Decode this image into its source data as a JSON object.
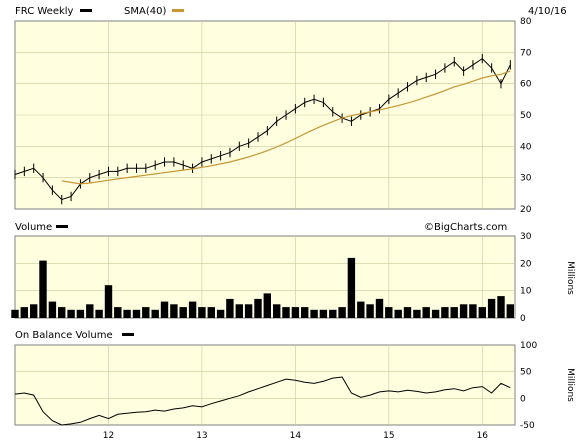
{
  "header": {
    "symbol_label": "FRC Weekly",
    "sma_label": "SMA(40)",
    "date": "4/10/16",
    "watermark": "©BigCharts.com"
  },
  "colors": {
    "panel_bg": "#ffffe0",
    "price": "#000000",
    "sma": "#c89632",
    "grid": "#c9c99a"
  },
  "chart_data": [
    {
      "type": "line",
      "name": "price",
      "title": "FRC Weekly",
      "ylim": [
        20,
        80
      ],
      "yticks": [
        20,
        30,
        40,
        50,
        60,
        70,
        80
      ],
      "x_years": [
        "12",
        "13",
        "14",
        "15",
        "16"
      ],
      "x": [
        2011.0,
        2011.1,
        2011.2,
        2011.3,
        2011.4,
        2011.5,
        2011.6,
        2011.7,
        2011.8,
        2011.9,
        2012.0,
        2012.1,
        2012.2,
        2012.3,
        2012.4,
        2012.5,
        2012.6,
        2012.7,
        2012.8,
        2012.9,
        2013.0,
        2013.1,
        2013.2,
        2013.3,
        2013.4,
        2013.5,
        2013.6,
        2013.7,
        2013.8,
        2013.9,
        2014.0,
        2014.1,
        2014.2,
        2014.3,
        2014.4,
        2014.5,
        2014.6,
        2014.7,
        2014.8,
        2014.9,
        2015.0,
        2015.1,
        2015.2,
        2015.3,
        2015.4,
        2015.5,
        2015.6,
        2015.7,
        2015.8,
        2015.9,
        2016.0,
        2016.1,
        2016.2,
        2016.3
      ],
      "series": [
        {
          "name": "FRC Weekly",
          "values": [
            31,
            32,
            33,
            30,
            26,
            23,
            24,
            28,
            30,
            31,
            32,
            32,
            33,
            33,
            33,
            34,
            35,
            35,
            34,
            33,
            35,
            36,
            37,
            38,
            40,
            41,
            43,
            45,
            48,
            50,
            52,
            54,
            55,
            54,
            51,
            49,
            48,
            50,
            51,
            52,
            55,
            57,
            59,
            61,
            62,
            63,
            65,
            67,
            64,
            66,
            68,
            65,
            60,
            66
          ]
        },
        {
          "name": "SMA(40)",
          "values": [
            null,
            null,
            null,
            null,
            null,
            29,
            28.5,
            28,
            28.3,
            28.7,
            29.2,
            29.6,
            30,
            30.4,
            30.8,
            31.2,
            31.6,
            32,
            32.4,
            32.8,
            33.3,
            33.8,
            34.4,
            35,
            35.8,
            36.6,
            37.6,
            38.6,
            39.8,
            41.1,
            42.5,
            44,
            45.4,
            46.7,
            47.9,
            49,
            49.8,
            50.4,
            51,
            51.6,
            52.3,
            53,
            53.8,
            54.7,
            55.7,
            56.7,
            57.8,
            59,
            59.8,
            60.8,
            61.8,
            62.5,
            63,
            64
          ]
        }
      ]
    },
    {
      "type": "bar",
      "name": "volume",
      "title": "Volume",
      "ylabel": "Millions",
      "ylim": [
        0,
        30
      ],
      "yticks": [
        0,
        10,
        20,
        30
      ],
      "x": [
        2011.0,
        2011.1,
        2011.2,
        2011.3,
        2011.4,
        2011.5,
        2011.6,
        2011.7,
        2011.8,
        2011.9,
        2012.0,
        2012.1,
        2012.2,
        2012.3,
        2012.4,
        2012.5,
        2012.6,
        2012.7,
        2012.8,
        2012.9,
        2013.0,
        2013.1,
        2013.2,
        2013.3,
        2013.4,
        2013.5,
        2013.6,
        2013.7,
        2013.8,
        2013.9,
        2014.0,
        2014.1,
        2014.2,
        2014.3,
        2014.4,
        2014.5,
        2014.6,
        2014.7,
        2014.8,
        2014.9,
        2015.0,
        2015.1,
        2015.2,
        2015.3,
        2015.4,
        2015.5,
        2015.6,
        2015.7,
        2015.8,
        2015.9,
        2016.0,
        2016.1,
        2016.2,
        2016.3
      ],
      "values": [
        3,
        4,
        5,
        21,
        6,
        4,
        3,
        3,
        5,
        3,
        12,
        4,
        3,
        3,
        4,
        3,
        6,
        5,
        4,
        6,
        4,
        4,
        3,
        7,
        5,
        5,
        7,
        9,
        5,
        4,
        4,
        4,
        3,
        3,
        3,
        4,
        22,
        6,
        5,
        7,
        4,
        3,
        4,
        3,
        4,
        3,
        4,
        4,
        5,
        5,
        4,
        7,
        8,
        5
      ]
    },
    {
      "type": "line",
      "name": "on-balance-volume",
      "title": "On Balance Volume",
      "ylabel": "Millions",
      "ylim": [
        -50,
        100
      ],
      "yticks": [
        -50,
        0,
        50,
        100
      ],
      "x": [
        2011.0,
        2011.1,
        2011.2,
        2011.3,
        2011.4,
        2011.5,
        2011.6,
        2011.7,
        2011.8,
        2011.9,
        2012.0,
        2012.1,
        2012.2,
        2012.3,
        2012.4,
        2012.5,
        2012.6,
        2012.7,
        2012.8,
        2012.9,
        2013.0,
        2013.1,
        2013.2,
        2013.3,
        2013.4,
        2013.5,
        2013.6,
        2013.7,
        2013.8,
        2013.9,
        2014.0,
        2014.1,
        2014.2,
        2014.3,
        2014.4,
        2014.5,
        2014.6,
        2014.7,
        2014.8,
        2014.9,
        2015.0,
        2015.1,
        2015.2,
        2015.3,
        2015.4,
        2015.5,
        2015.6,
        2015.7,
        2015.8,
        2015.9,
        2016.0,
        2016.1,
        2016.2,
        2016.3
      ],
      "values": [
        8,
        10,
        6,
        -25,
        -42,
        -50,
        -48,
        -45,
        -38,
        -32,
        -38,
        -30,
        -28,
        -26,
        -25,
        -22,
        -24,
        -20,
        -18,
        -14,
        -16,
        -10,
        -5,
        0,
        5,
        12,
        18,
        24,
        30,
        36,
        34,
        30,
        28,
        32,
        38,
        40,
        10,
        2,
        6,
        12,
        14,
        12,
        15,
        13,
        10,
        12,
        16,
        18,
        14,
        20,
        22,
        10,
        28,
        20
      ]
    }
  ]
}
